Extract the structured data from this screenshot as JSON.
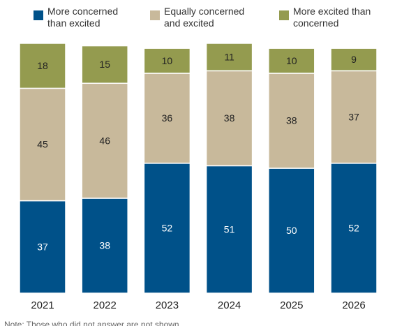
{
  "chart_data": {
    "type": "stacked-bar",
    "categories": [
      "2021",
      "2022",
      "2023",
      "2024",
      "2025",
      "2026"
    ],
    "series": [
      {
        "name": "More concerned than excited",
        "color": "#005189",
        "values": [
          37,
          38,
          52,
          51,
          50,
          52
        ]
      },
      {
        "name": "Equally concerned and excited",
        "color": "#c8b99b",
        "values": [
          45,
          46,
          36,
          38,
          38,
          37
        ]
      },
      {
        "name": "More excited than concerned",
        "color": "#949b4f",
        "values": [
          18,
          15,
          10,
          11,
          10,
          9
        ]
      }
    ],
    "ylim": [
      0,
      100
    ],
    "note": "Note: Those who did not answer are not shown."
  }
}
